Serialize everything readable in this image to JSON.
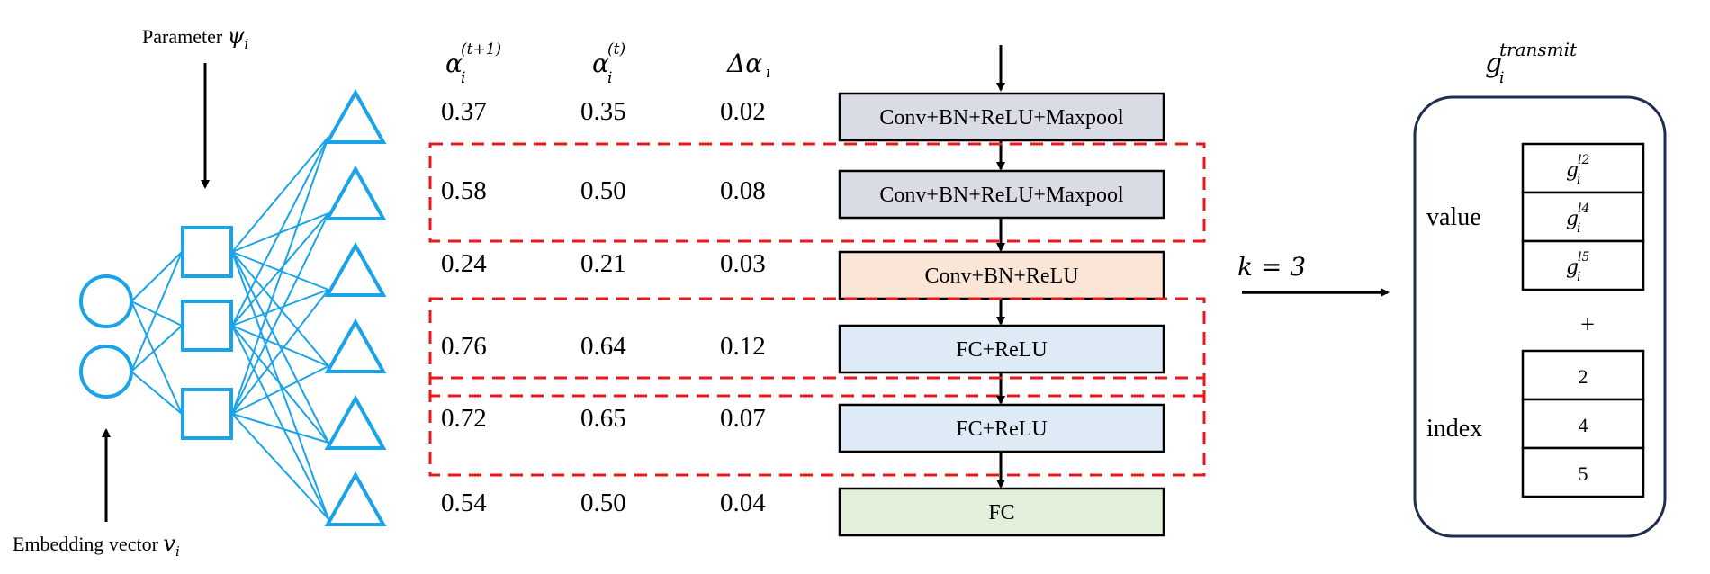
{
  "left_net": {
    "param_label_text": "Parameter ",
    "param_symbol": "ψ",
    "param_sub": "i",
    "embed_label_text": "Embedding vector ",
    "embed_symbol": "v",
    "embed_sub": "i",
    "color": "#1aa3e8"
  },
  "table": {
    "headers": [
      {
        "base": "α",
        "sub": "i",
        "sup": "(t+1)"
      },
      {
        "base": "α",
        "sub": "i",
        "sup": "(t)"
      },
      {
        "base": "Δα",
        "sub": "i",
        "sup": ""
      }
    ],
    "rows": [
      {
        "a_next": "0.37",
        "a_cur": "0.35",
        "delta": "0.02",
        "layer": "Conv+BN+ReLU+Maxpool",
        "fill": "#d9dce4",
        "selected": false
      },
      {
        "a_next": "0.58",
        "a_cur": "0.50",
        "delta": "0.08",
        "layer": "Conv+BN+ReLU+Maxpool",
        "fill": "#d9dce4",
        "selected": true
      },
      {
        "a_next": "0.24",
        "a_cur": "0.21",
        "delta": "0.03",
        "layer": "Conv+BN+ReLU",
        "fill": "#fbe5d6",
        "selected": false
      },
      {
        "a_next": "0.76",
        "a_cur": "0.64",
        "delta": "0.12",
        "layer": "FC+ReLU",
        "fill": "#deebf7",
        "selected": true
      },
      {
        "a_next": "0.72",
        "a_cur": "0.65",
        "delta": "0.07",
        "layer": "FC+ReLU",
        "fill": "#deebf7",
        "selected": true
      },
      {
        "a_next": "0.54",
        "a_cur": "0.50",
        "delta": "0.04",
        "layer": "FC",
        "fill": "#e2efda",
        "selected": false
      }
    ],
    "selection_color": "#e8191b"
  },
  "k_label": "k = 3",
  "transmit": {
    "title_base": "g",
    "title_sub": "i",
    "title_sup": "transmit",
    "value_label": "value",
    "index_label": "index",
    "plus": "+",
    "values": [
      {
        "base": "g",
        "sub": "i",
        "sup": "l2"
      },
      {
        "base": "g",
        "sub": "i",
        "sup": "l4"
      },
      {
        "base": "g",
        "sub": "i",
        "sup": "l5"
      }
    ],
    "indices": [
      "2",
      "4",
      "5"
    ],
    "border_color": "#1f2d4f"
  }
}
